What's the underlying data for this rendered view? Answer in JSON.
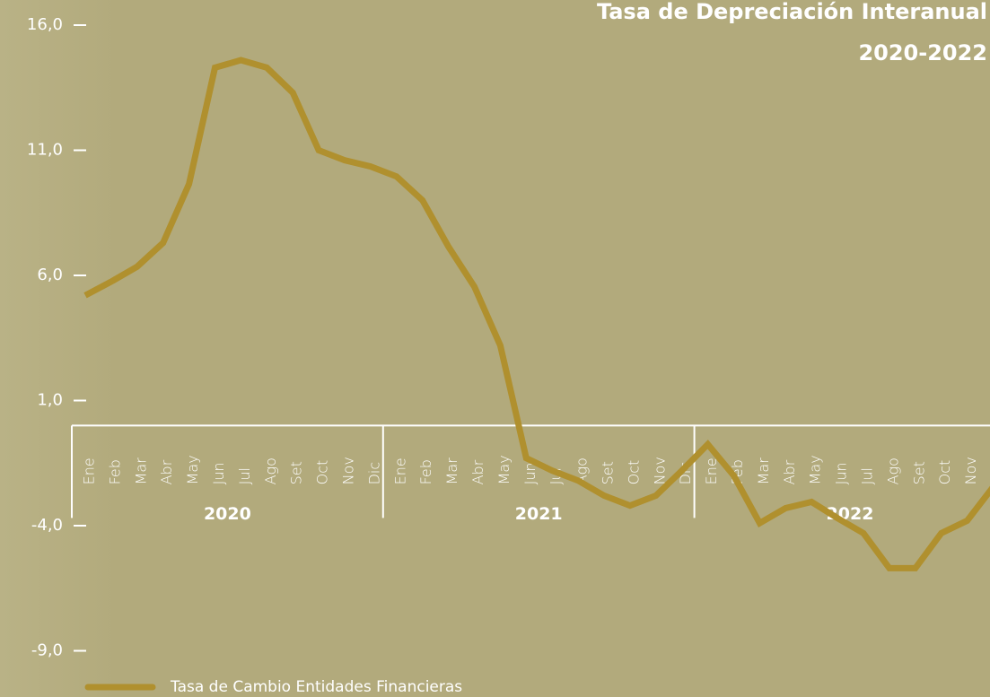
{
  "chart_data": {
    "type": "line",
    "title": "Tasa de Depreciación Interanual",
    "subtitle": "2020-2022",
    "categories": [
      "Ene",
      "Feb",
      "Mar",
      "Abr",
      "May",
      "Jun",
      "Jul",
      "Ago",
      "Set",
      "Oct",
      "Nov",
      "Dic",
      "Ene",
      "Feb",
      "Mar",
      "Abr",
      "May",
      "Jun",
      "Jul",
      "Ago",
      "Set",
      "Oct",
      "Nov",
      "Dic",
      "Ene",
      "Feb",
      "Mar",
      "Abr",
      "May",
      "Jun",
      "Jul",
      "Ago",
      "Set",
      "Oct",
      "Nov",
      "Dic"
    ],
    "year_groups": [
      "2020",
      "2021",
      "2022"
    ],
    "series": [
      {
        "name": "Tasa de Cambio Entidades Financieras",
        "color": "#b0902e",
        "values": [
          5.2,
          5.75,
          6.35,
          7.3,
          9.65,
          14.3,
          14.6,
          14.3,
          13.3,
          11.0,
          10.6,
          10.35,
          9.95,
          9.0,
          7.15,
          5.55,
          3.2,
          -1.3,
          -1.8,
          -2.2,
          -2.8,
          -3.2,
          -2.8,
          -1.8,
          -0.75,
          -2.0,
          -3.9,
          -3.3,
          -3.05,
          -3.7,
          -4.3,
          -5.7,
          -5.7,
          -4.3,
          -3.8,
          -2.45
        ]
      }
    ],
    "ylim": [
      -10,
      17
    ],
    "yticks": [
      {
        "value": 16,
        "label": "16,0"
      },
      {
        "value": 11,
        "label": "11,0"
      },
      {
        "value": 6,
        "label": "6,0"
      },
      {
        "value": 1,
        "label": "1,0"
      },
      {
        "value": -4,
        "label": "-4,0"
      },
      {
        "value": -9,
        "label": "-9,0"
      }
    ],
    "legend": "bottom-left"
  }
}
